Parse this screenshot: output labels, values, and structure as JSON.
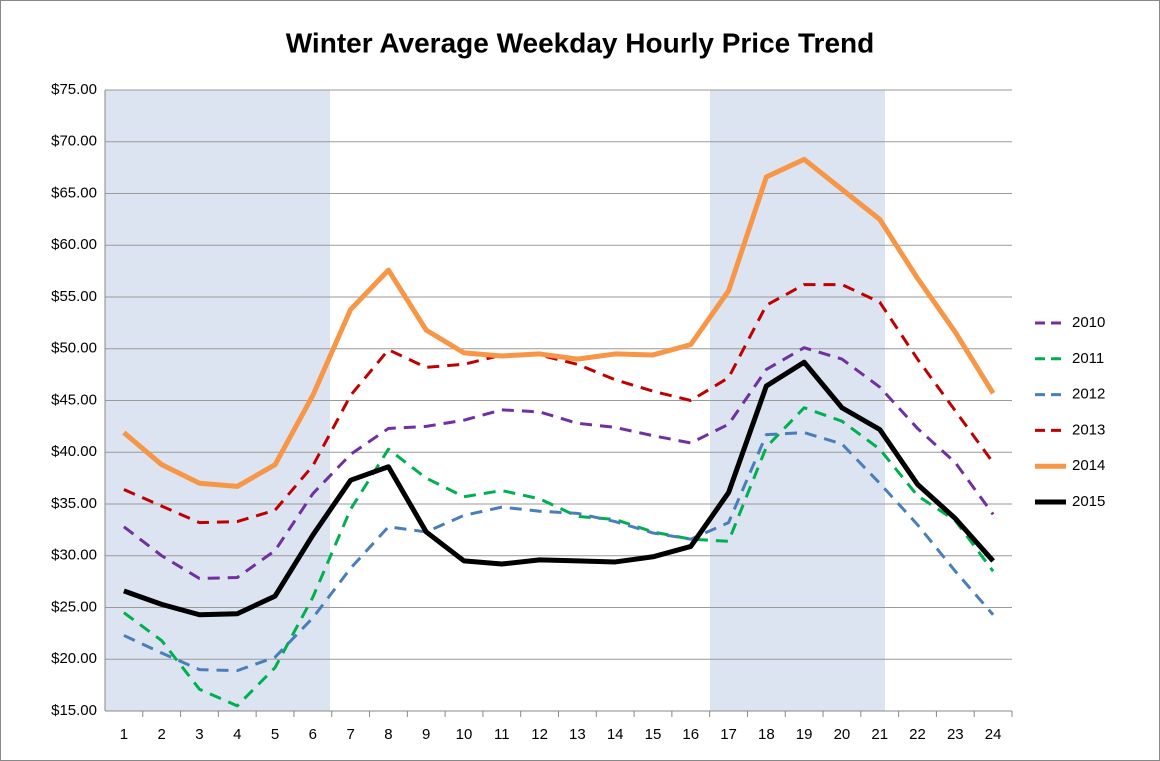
{
  "chart_data": {
    "type": "line",
    "title": "Winter Average Weekday Hourly Price Trend",
    "categories": [
      "1",
      "2",
      "3",
      "4",
      "5",
      "6",
      "7",
      "8",
      "9",
      "10",
      "11",
      "12",
      "13",
      "14",
      "15",
      "16",
      "17",
      "18",
      "19",
      "20",
      "21",
      "22",
      "23",
      "24"
    ],
    "ylim": [
      15,
      75
    ],
    "yticks": [
      {
        "value": 15,
        "label": "$15.00"
      },
      {
        "value": 20,
        "label": "$20.00"
      },
      {
        "value": 25,
        "label": "$25.00"
      },
      {
        "value": 30,
        "label": "$30.00"
      },
      {
        "value": 35,
        "label": "$35.00"
      },
      {
        "value": 40,
        "label": "$40.00"
      },
      {
        "value": 45,
        "label": "$45.00"
      },
      {
        "value": 50,
        "label": "$50.00"
      },
      {
        "value": 55,
        "label": "$55.00"
      },
      {
        "value": 60,
        "label": "$60.00"
      },
      {
        "value": 65,
        "label": "$65.00"
      },
      {
        "value": 70,
        "label": "$70.00"
      },
      {
        "value": 75,
        "label": "$75.00"
      }
    ],
    "grid": true,
    "legend": "right",
    "series": [
      {
        "name": "2010",
        "color": "#7030a0",
        "dashed": true,
        "values": [
          32.8,
          30.0,
          27.8,
          27.9,
          30.5,
          36.0,
          39.8,
          42.3,
          42.5,
          43.1,
          44.1,
          43.9,
          42.8,
          42.4,
          41.6,
          40.9,
          42.7,
          48.0,
          50.1,
          49.0,
          46.3,
          42.3,
          39.0,
          34.0
        ]
      },
      {
        "name": "2011",
        "color": "#00b050",
        "dashed": true,
        "values": [
          24.5,
          21.8,
          17.1,
          15.5,
          19.2,
          26.0,
          34.5,
          40.3,
          37.5,
          35.7,
          36.3,
          35.5,
          33.8,
          33.5,
          32.3,
          31.6,
          31.4,
          40.5,
          44.3,
          43.0,
          40.3,
          35.8,
          33.4,
          28.5
        ]
      },
      {
        "name": "2012",
        "color": "#4a7ebb",
        "dashed": true,
        "values": [
          22.3,
          20.6,
          19.0,
          18.9,
          20.2,
          24.0,
          28.8,
          32.8,
          32.3,
          33.9,
          34.7,
          34.3,
          34.1,
          33.3,
          32.2,
          31.6,
          33.2,
          41.7,
          41.9,
          40.8,
          37.0,
          33.0,
          28.5,
          24.3
        ]
      },
      {
        "name": "2013",
        "color": "#c00000",
        "dashed": true,
        "values": [
          36.4,
          34.8,
          33.2,
          33.3,
          34.4,
          38.7,
          45.5,
          49.9,
          48.2,
          48.5,
          49.4,
          49.4,
          48.5,
          47.0,
          45.9,
          45.0,
          47.2,
          54.2,
          56.2,
          56.2,
          54.5,
          49.0,
          44.0,
          39.0
        ]
      },
      {
        "name": "2014",
        "color": "#f79646",
        "dashed": false,
        "values": [
          41.9,
          38.8,
          37.0,
          36.7,
          38.8,
          45.5,
          53.8,
          57.6,
          51.8,
          49.6,
          49.3,
          49.5,
          49.0,
          49.5,
          49.4,
          50.4,
          55.6,
          66.6,
          68.3,
          65.4,
          62.5,
          56.8,
          51.6,
          45.7
        ]
      },
      {
        "name": "2015",
        "color": "#000000",
        "dashed": false,
        "values": [
          26.6,
          25.3,
          24.3,
          24.4,
          26.1,
          32.0,
          37.3,
          38.6,
          32.3,
          29.5,
          29.2,
          29.6,
          29.5,
          29.4,
          29.9,
          30.9,
          36.1,
          46.4,
          48.7,
          44.3,
          42.2,
          36.9,
          33.6,
          29.5
        ]
      }
    ]
  }
}
